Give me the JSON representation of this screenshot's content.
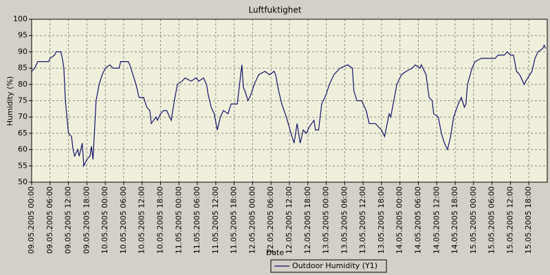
{
  "chart_data": {
    "type": "line",
    "title": "Luftfuktighet",
    "xlabel": "Date",
    "ylabel": "Humidity (%)",
    "ylim": [
      50,
      100
    ],
    "yticks": [
      50,
      55,
      60,
      65,
      70,
      75,
      80,
      85,
      90,
      95,
      100
    ],
    "xlim": [
      "09.05.2005 00:00",
      "16.05.2005 00:00"
    ],
    "xticks": [
      "09.05.2005 00:00",
      "09.05.2005 06:00",
      "09.05.2005 12:00",
      "09.05.2005 18:00",
      "10.05.2005 00:00",
      "10.05.2005 06:00",
      "10.05.2005 12:00",
      "10.05.2005 18:00",
      "11.05.2005 00:00",
      "11.05.2005 06:00",
      "11.05.2005 12:00",
      "11.05.2005 18:00",
      "12.05.2005 00:00",
      "12.05.2005 06:00",
      "12.05.2005 12:00",
      "12.05.2005 18:00",
      "13.05.2005 00:00",
      "13.05.2005 06:00",
      "13.05.2005 12:00",
      "13.05.2005 18:00",
      "14.05.2005 00:00",
      "14.05.2005 06:00",
      "14.05.2005 12:00",
      "14.05.2005 18:00",
      "15.05.2005 00:00",
      "15.05.2005 06:00",
      "15.05.2005 12:00",
      "15.05.2005 18:00"
    ],
    "grid": true,
    "legend": "bottom",
    "x": [
      "09.05.2005 00:00",
      "09.05.2005 01:00",
      "09.05.2005 02:00",
      "09.05.2005 05:30",
      "09.05.2005 06:00",
      "09.05.2005 07:30",
      "09.05.2005 08:00",
      "09.05.2005 09:30",
      "09.05.2005 10:00",
      "09.05.2005 10:30",
      "09.05.2005 11:00",
      "09.05.2005 12:00",
      "09.05.2005 13:00",
      "09.05.2005 13:30",
      "09.05.2005 14:00",
      "09.05.2005 15:00",
      "09.05.2005 15:30",
      "09.05.2005 16:30",
      "09.05.2005 17:00",
      "09.05.2005 18:00",
      "09.05.2005 19:00",
      "09.05.2005 19:30",
      "09.05.2005 20:00",
      "09.05.2005 21:00",
      "09.05.2005 22:00",
      "09.05.2005 23:00",
      "10.05.2005 00:00",
      "10.05.2005 01:30",
      "10.05.2005 02:30",
      "10.05.2005 04:30",
      "10.05.2005 05:00",
      "10.05.2005 07:30",
      "10.05.2005 08:00",
      "10.05.2005 09:00",
      "10.05.2005 10:00",
      "10.05.2005 11:00",
      "10.05.2005 12:30",
      "10.05.2005 13:30",
      "10.05.2005 14:30",
      "10.05.2005 15:00",
      "10.05.2005 16:30",
      "10.05.2005 17:00",
      "10.05.2005 18:00",
      "10.05.2005 19:00",
      "10.05.2005 20:00",
      "10.05.2005 21:00",
      "10.05.2005 21:30",
      "10.05.2005 22:30",
      "10.05.2005 23:30",
      "11.05.2005 01:00",
      "11.05.2005 02:00",
      "11.05.2005 04:00",
      "11.05.2005 05:30",
      "11.05.2005 06:30",
      "11.05.2005 08:00",
      "11.05.2005 09:00",
      "11.05.2005 09:30",
      "11.05.2005 10:30",
      "11.05.2005 11:30",
      "11.05.2005 12:30",
      "11.05.2005 13:30",
      "11.05.2005 14:30",
      "11.05.2005 16:00",
      "11.05.2005 17:00",
      "11.05.2005 19:00",
      "11.05.2005 20:30",
      "11.05.2005 21:00",
      "11.05.2005 21:30",
      "11.05.2005 22:30",
      "11.05.2005 23:30",
      "12.05.2005 00:30",
      "12.05.2005 02:00",
      "12.05.2005 04:00",
      "12.05.2005 05:30",
      "12.05.2005 07:00",
      "12.05.2005 07:30",
      "12.05.2005 08:30",
      "12.05.2005 09:30",
      "12.05.2005 11:00",
      "12.05.2005 12:30",
      "12.05.2005 13:30",
      "12.05.2005 14:30",
      "12.05.2005 15:30",
      "12.05.2005 16:30",
      "12.05.2005 17:30",
      "12.05.2005 18:30",
      "12.05.2005 20:00",
      "12.05.2005 20:30",
      "12.05.2005 21:30",
      "12.05.2005 22:30",
      "13.05.2005 00:00",
      "13.05.2005 01:00",
      "13.05.2005 02:30",
      "13.05.2005 04:30",
      "13.05.2005 07:00",
      "13.05.2005 08:30",
      "13.05.2005 09:00",
      "13.05.2005 10:00",
      "13.05.2005 11:30",
      "13.05.2005 13:00",
      "13.05.2005 14:00",
      "13.05.2005 16:00",
      "13.05.2005 18:00",
      "13.05.2005 19:00",
      "13.05.2005 20:30",
      "13.05.2005 21:00",
      "13.05.2005 22:00",
      "13.05.2005 23:00",
      "14.05.2005 00:30",
      "14.05.2005 02:00",
      "14.05.2005 04:00",
      "14.05.2005 05:00",
      "14.05.2005 06:30",
      "14.05.2005 07:00",
      "14.05.2005 08:30",
      "14.05.2005 09:30",
      "14.05.2005 10:30",
      "14.05.2005 11:00",
      "14.05.2005 12:30",
      "14.05.2005 13:30",
      "14.05.2005 14:30",
      "14.05.2005 15:30",
      "14.05.2005 16:30",
      "14.05.2005 17:30",
      "14.05.2005 19:00",
      "14.05.2005 20:00",
      "14.05.2005 21:00",
      "14.05.2005 21:30",
      "14.05.2005 22:00",
      "14.05.2005 23:30",
      "15.05.2005 00:30",
      "15.05.2005 02:30",
      "15.05.2005 07:00",
      "15.05.2005 08:00",
      "15.05.2005 10:00",
      "15.05.2005 11:00",
      "15.05.2005 12:00",
      "15.05.2005 13:00",
      "15.05.2005 14:00",
      "15.05.2005 15:00",
      "15.05.2005 16:30",
      "15.05.2005 17:00",
      "15.05.2005 19:00",
      "15.05.2005 20:00",
      "15.05.2005 21:00",
      "15.05.2005 22:30",
      "15.05.2005 23:00",
      "15.05.2005 23:30"
    ],
    "series": [
      {
        "name": "Outdoor Humidity (Y1)",
        "color": "#10106a",
        "values": [
          84,
          85,
          87,
          87,
          88,
          89,
          90,
          90,
          88,
          85,
          75,
          65,
          64,
          60,
          58,
          60,
          58,
          62,
          55,
          57,
          58,
          61,
          57,
          75,
          80,
          83,
          85,
          86,
          85,
          85,
          87,
          87,
          86,
          83,
          80,
          76,
          76,
          73,
          72,
          68,
          70,
          69,
          71,
          72,
          72,
          70,
          69,
          75,
          80,
          81,
          82,
          81,
          82,
          81,
          82,
          80,
          77,
          73,
          71,
          66,
          70,
          72,
          71,
          74,
          74,
          86,
          79,
          78,
          75,
          77,
          80,
          83,
          84,
          83,
          84,
          83,
          78,
          74,
          70,
          65,
          62,
          68,
          62,
          66,
          65,
          67,
          69,
          66,
          66,
          74,
          77,
          80,
          83,
          85,
          86,
          85,
          78,
          75,
          75,
          72,
          68,
          68,
          66,
          64,
          71,
          70,
          75,
          80,
          83,
          84,
          85,
          86,
          85,
          86,
          83,
          76,
          75,
          71,
          70,
          65,
          62,
          60,
          64,
          70,
          74,
          76,
          73,
          74,
          80,
          85,
          87,
          88,
          88,
          89,
          89,
          90,
          89,
          89,
          84,
          83,
          80,
          81,
          84,
          88,
          90,
          91,
          92,
          91
        ]
      }
    ]
  }
}
